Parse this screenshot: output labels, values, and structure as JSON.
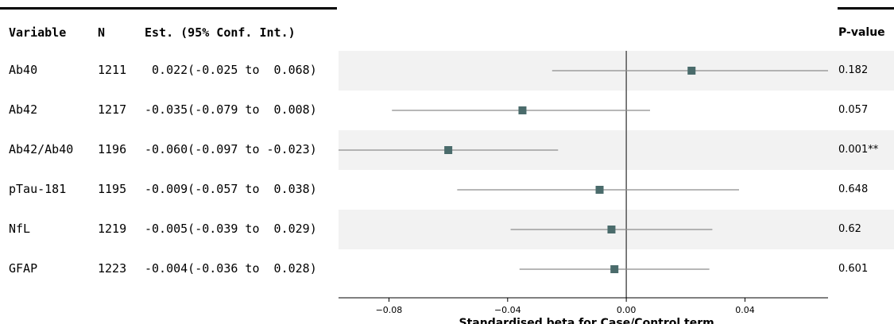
{
  "table": {
    "headers": {
      "variable": "Variable",
      "n": "N",
      "estimate": "Est. (95% Conf. Int.)",
      "pvalue": "P-value"
    },
    "rows": [
      {
        "variable": "Ab40",
        "n": "1211",
        "est_text": " 0.022(-0.025 to  0.068)",
        "pvalue": "0.182"
      },
      {
        "variable": "Ab42",
        "n": "1217",
        "est_text": "-0.035(-0.079 to  0.008)",
        "pvalue": "0.057"
      },
      {
        "variable": "Ab42/Ab40",
        "n": "1196",
        "est_text": "-0.060(-0.097 to -0.023)",
        "pvalue": "0.001**"
      },
      {
        "variable": "pTau-181",
        "n": "1195",
        "est_text": "-0.009(-0.057 to  0.038)",
        "pvalue": "0.648"
      },
      {
        "variable": "NfL",
        "n": "1219",
        "est_text": "-0.005(-0.039 to  0.029)",
        "pvalue": "0.62"
      },
      {
        "variable": "GFAP",
        "n": "1223",
        "est_text": "-0.004(-0.036 to  0.028)",
        "pvalue": "0.601"
      }
    ]
  },
  "chart_data": {
    "type": "scatter",
    "subtype": "forest-plot",
    "xlabel": "Standardised beta for Case/Control term",
    "xlim": [
      -0.097,
      0.068
    ],
    "xticks": [
      -0.08,
      -0.04,
      0.0,
      0.04
    ],
    "xtick_labels": [
      "−0.08",
      "−0.04",
      "0.00",
      "0.04"
    ],
    "reference_line": 0.0,
    "categories": [
      "Ab40",
      "Ab42",
      "Ab42/Ab40",
      "pTau-181",
      "NfL",
      "GFAP"
    ],
    "series": [
      {
        "estimate": [
          0.022,
          -0.035,
          -0.06,
          -0.009,
          -0.005,
          -0.004
        ],
        "ci_low": [
          -0.025,
          -0.079,
          -0.097,
          -0.057,
          -0.039,
          -0.036
        ],
        "ci_high": [
          0.068,
          0.008,
          -0.023,
          0.038,
          0.029,
          0.028
        ]
      }
    ],
    "colors": {
      "marker": "#4a6b6b",
      "ci_line": "#8c8c8c",
      "zero_line": "#555555",
      "stripe": "#f2f2f2"
    },
    "grid": false
  }
}
